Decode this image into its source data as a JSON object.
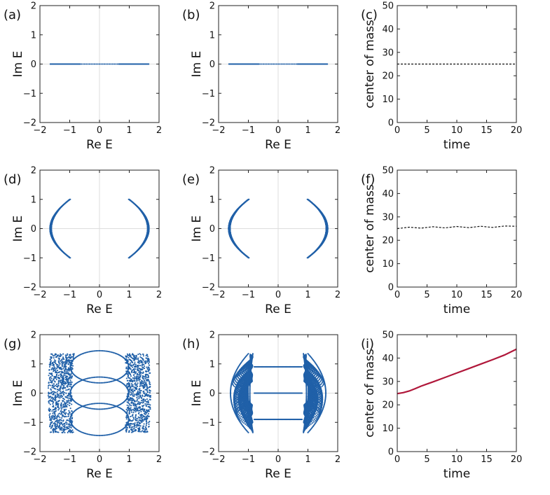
{
  "chart_data": [
    {
      "type": "scatter",
      "panel": "(a)",
      "title": "",
      "xlabel": "Re E",
      "ylabel": "Im E",
      "xlim": [
        -2,
        2
      ],
      "ylim": [
        -2,
        2
      ],
      "xticks": [
        -2,
        -1,
        0,
        1,
        2
      ],
      "yticks": [
        -2,
        -1,
        0,
        1,
        2
      ],
      "gridlines": "zero axes",
      "color": "#2060a8",
      "series": [
        {
          "name": "eigenvalues",
          "shape": "real-segment",
          "x_range": [
            -1.65,
            1.65
          ],
          "dense_edges": [
            [
              -1.65,
              -0.65
            ],
            [
              0.65,
              1.65
            ]
          ]
        }
      ]
    },
    {
      "type": "scatter",
      "panel": "(b)",
      "title": "",
      "xlabel": "Re E",
      "ylabel": "Im E",
      "xlim": [
        -2,
        2
      ],
      "ylim": [
        -2,
        2
      ],
      "xticks": [
        -2,
        -1,
        0,
        1,
        2
      ],
      "yticks": [
        -2,
        -1,
        0,
        1,
        2
      ],
      "gridlines": "zero axes",
      "color": "#2060a8",
      "series": [
        {
          "name": "eigenvalues",
          "shape": "real-segment",
          "x_range": [
            -1.65,
            1.65
          ],
          "dense_edges": [
            [
              -1.65,
              -0.65
            ],
            [
              0.65,
              1.65
            ]
          ]
        }
      ]
    },
    {
      "type": "line",
      "panel": "(c)",
      "title": "",
      "xlabel": "time",
      "ylabel": "center of mass",
      "xlim": [
        0,
        20
      ],
      "ylim": [
        0,
        50
      ],
      "xticks": [
        0,
        5,
        10,
        15,
        20
      ],
      "yticks": [
        0,
        10,
        20,
        30,
        40,
        50
      ],
      "color": "#111111",
      "style": "dashed",
      "series": [
        {
          "name": "center of mass",
          "x": [
            0,
            5,
            10,
            15,
            20
          ],
          "values": [
            25,
            25,
            25,
            25,
            25
          ]
        }
      ]
    },
    {
      "type": "scatter",
      "panel": "(d)",
      "title": "",
      "xlabel": "Re E",
      "ylabel": "Im E",
      "xlim": [
        -2,
        2
      ],
      "ylim": [
        -2,
        2
      ],
      "xticks": [
        -2,
        -1,
        0,
        1,
        2
      ],
      "yticks": [
        -2,
        -1,
        0,
        1,
        2
      ],
      "gridlines": "zero axes",
      "color": "#2060a8",
      "series": [
        {
          "name": "eigenvalues",
          "shape": "crescent-pair",
          "inner_x": 1.0,
          "outer_x": 1.68,
          "ylim": [
            -1,
            1
          ],
          "hatch": "sparse"
        }
      ]
    },
    {
      "type": "scatter",
      "panel": "(e)",
      "title": "",
      "xlabel": "Re E",
      "ylabel": "Im E",
      "xlim": [
        -2,
        2
      ],
      "ylim": [
        -2,
        2
      ],
      "xticks": [
        -2,
        -1,
        0,
        1,
        2
      ],
      "yticks": [
        -2,
        -1,
        0,
        1,
        2
      ],
      "gridlines": "zero axes",
      "color": "#2060a8",
      "series": [
        {
          "name": "eigenvalues",
          "shape": "crescent-pair",
          "inner_x": 1.0,
          "outer_x": 1.68,
          "ylim": [
            -1,
            1
          ],
          "hatch": "dense"
        }
      ]
    },
    {
      "type": "line",
      "panel": "(f)",
      "title": "",
      "xlabel": "time",
      "ylabel": "center of mass",
      "xlim": [
        0,
        20
      ],
      "ylim": [
        0,
        50
      ],
      "xticks": [
        0,
        5,
        10,
        15,
        20
      ],
      "yticks": [
        0,
        10,
        20,
        30,
        40,
        50
      ],
      "color": "#111111",
      "style": "dashed",
      "series": [
        {
          "name": "center of mass",
          "x": [
            0,
            2,
            4,
            6,
            8,
            10,
            12,
            14,
            16,
            18,
            20
          ],
          "values": [
            25.0,
            25.6,
            25.2,
            25.8,
            25.3,
            25.9,
            25.4,
            26.0,
            25.5,
            26.1,
            26.0
          ]
        }
      ]
    },
    {
      "type": "scatter",
      "panel": "(g)",
      "title": "",
      "xlabel": "Re E",
      "ylabel": "Im E",
      "xlim": [
        -2,
        2
      ],
      "ylim": [
        -2,
        2
      ],
      "xticks": [
        -2,
        -1,
        0,
        1,
        2
      ],
      "yticks": [
        -2,
        -1,
        0,
        1,
        2
      ],
      "gridlines": "zero axes",
      "color": "#2060a8",
      "series": [
        {
          "name": "eigenvalues",
          "shape": "loops",
          "loop_centers_y": [
            0.9,
            0.0,
            -0.9
          ],
          "loop_half_width": 1.0,
          "loop_half_height": 0.55,
          "side_bands_x": [
            [
              -1.65,
              -0.85
            ],
            [
              0.85,
              1.65
            ]
          ]
        }
      ]
    },
    {
      "type": "scatter",
      "panel": "(h)",
      "title": "",
      "xlabel": "Re E",
      "ylabel": "Im E",
      "xlim": [
        -2,
        2
      ],
      "ylim": [
        -2,
        2
      ],
      "xticks": [
        -2,
        -1,
        0,
        1,
        2
      ],
      "yticks": [
        -2,
        -1,
        0,
        1,
        2
      ],
      "gridlines": "zero axes",
      "color": "#2060a8",
      "series": [
        {
          "name": "eigenvalues",
          "shape": "crescents-with-lines",
          "inner_x": 0.85,
          "outer_x": 1.55,
          "ylim": [
            -1.35,
            1.35
          ],
          "horizontal_lines_y": [
            0.9,
            0.0,
            -0.9
          ],
          "line_x_range": [
            -0.8,
            0.8
          ]
        }
      ]
    },
    {
      "type": "line",
      "panel": "(i)",
      "title": "",
      "xlabel": "time",
      "ylabel": "center of mass",
      "xlim": [
        0,
        20
      ],
      "ylim": [
        0,
        50
      ],
      "xticks": [
        0,
        5,
        10,
        15,
        20
      ],
      "yticks": [
        0,
        10,
        20,
        30,
        40,
        50
      ],
      "color": "#b0173a",
      "style": "solid",
      "series": [
        {
          "name": "center of mass",
          "x": [
            0,
            1,
            2,
            3,
            4,
            5,
            6,
            8,
            10,
            12,
            14,
            16,
            18,
            20
          ],
          "values": [
            24.8,
            25.2,
            25.9,
            26.9,
            28.0,
            28.9,
            29.8,
            31.7,
            33.6,
            35.5,
            37.4,
            39.3,
            41.3,
            43.8
          ]
        }
      ]
    }
  ]
}
